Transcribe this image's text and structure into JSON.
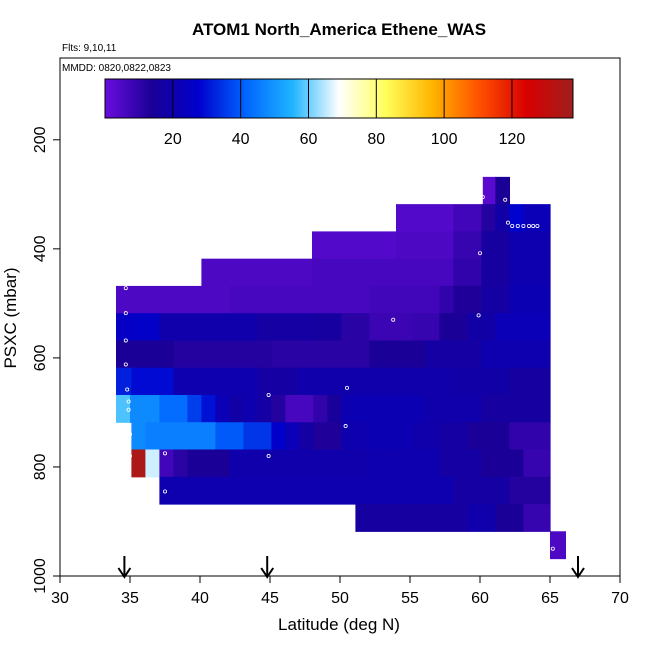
{
  "chart_data": {
    "type": "heatmap",
    "title": "ATOM1 North_America Ethene_WAS",
    "subtitle_flights": "Flts: 9,10,11",
    "subtitle_dates": "MMDD: 0820,0822,0823",
    "xlabel": "Latitude (deg N)",
    "ylabel": "PSXC (mbar)",
    "xlim": [
      30,
      70
    ],
    "ylim": [
      1000,
      50
    ],
    "x_ticks": [
      "30",
      "35",
      "40",
      "45",
      "50",
      "55",
      "60",
      "65",
      "70"
    ],
    "y_ticks": [
      "200",
      "400",
      "600",
      "800",
      "1000"
    ],
    "colorbar": {
      "range": [
        0,
        138
      ],
      "ticks": [
        "20",
        "40",
        "60",
        "80",
        "100",
        "120"
      ],
      "stops": [
        "#6a0dde",
        "#1a0096",
        "#0000cd",
        "#0064ff",
        "#1eb4ff",
        "#ffffff",
        "#ffff5a",
        "#ffb400",
        "#ff5000",
        "#d80000",
        "#a01e1e"
      ]
    },
    "arrows_latitude": [
      34.6,
      44.8,
      67
    ],
    "rows": [
      {
        "p_top": 268,
        "p_bottom": 318,
        "cells": [
          {
            "x0": 60.2,
            "x1": 61.1,
            "v": 3
          },
          {
            "x0": 61.1,
            "x1": 62.1,
            "v": 14
          }
        ]
      },
      {
        "p_top": 318,
        "p_bottom": 368,
        "cells": [
          {
            "x0": 54.0,
            "x1": 58.1,
            "v": 4
          },
          {
            "x0": 58.1,
            "x1": 60.1,
            "v": 7
          },
          {
            "x0": 60.1,
            "x1": 61.1,
            "v": 12
          },
          {
            "x0": 61.1,
            "x1": 62.1,
            "v": 18
          },
          {
            "x0": 62.1,
            "x1": 63.1,
            "v": 28
          },
          {
            "x0": 63.1,
            "x1": 65.0,
            "v": 22
          }
        ]
      },
      {
        "p_top": 368,
        "p_bottom": 418,
        "cells": [
          {
            "x0": 48.0,
            "x1": 54.0,
            "v": 4
          },
          {
            "x0": 54.0,
            "x1": 58.1,
            "v": 5
          },
          {
            "x0": 58.1,
            "x1": 60.1,
            "v": 9
          },
          {
            "x0": 60.1,
            "x1": 62.1,
            "v": 16
          },
          {
            "x0": 62.1,
            "x1": 65.0,
            "v": 20
          }
        ]
      },
      {
        "p_top": 418,
        "p_bottom": 468,
        "cells": [
          {
            "x0": 40.1,
            "x1": 48.0,
            "v": 5
          },
          {
            "x0": 48.0,
            "x1": 58.1,
            "v": 6
          },
          {
            "x0": 58.1,
            "x1": 60.1,
            "v": 10
          },
          {
            "x0": 60.1,
            "x1": 62.1,
            "v": 16
          },
          {
            "x0": 62.1,
            "x1": 65.0,
            "v": 20
          }
        ]
      },
      {
        "p_top": 468,
        "p_bottom": 518,
        "cells": [
          {
            "x0": 34.0,
            "x1": 42.1,
            "v": 5
          },
          {
            "x0": 42.1,
            "x1": 52.1,
            "v": 6
          },
          {
            "x0": 52.1,
            "x1": 57.1,
            "v": 7
          },
          {
            "x0": 57.1,
            "x1": 58.1,
            "v": 10
          },
          {
            "x0": 58.1,
            "x1": 60.1,
            "v": 13
          },
          {
            "x0": 60.1,
            "x1": 62.1,
            "v": 17
          },
          {
            "x0": 62.1,
            "x1": 65.0,
            "v": 21
          }
        ]
      },
      {
        "p_top": 518,
        "p_bottom": 568,
        "cells": [
          {
            "x0": 34.0,
            "x1": 35.1,
            "v": 25
          },
          {
            "x0": 35.1,
            "x1": 37.1,
            "v": 26
          },
          {
            "x0": 37.1,
            "x1": 44.1,
            "v": 19
          },
          {
            "x0": 44.1,
            "x1": 48.1,
            "v": 17
          },
          {
            "x0": 48.1,
            "x1": 50.1,
            "v": 16
          },
          {
            "x0": 50.1,
            "x1": 52.1,
            "v": 11
          },
          {
            "x0": 52.1,
            "x1": 55.1,
            "v": 8
          },
          {
            "x0": 55.1,
            "x1": 57.1,
            "v": 9
          },
          {
            "x0": 57.1,
            "x1": 59.1,
            "v": 14
          },
          {
            "x0": 59.1,
            "x1": 61.1,
            "v": 18
          },
          {
            "x0": 61.1,
            "x1": 65.0,
            "v": 22
          }
        ]
      },
      {
        "p_top": 568,
        "p_bottom": 618,
        "cells": [
          {
            "x0": 34.0,
            "x1": 38.1,
            "v": 14
          },
          {
            "x0": 38.1,
            "x1": 45.1,
            "v": 12
          },
          {
            "x0": 45.1,
            "x1": 52.1,
            "v": 11
          },
          {
            "x0": 52.1,
            "x1": 56.1,
            "v": 14
          },
          {
            "x0": 56.1,
            "x1": 60.1,
            "v": 17
          },
          {
            "x0": 60.1,
            "x1": 65.0,
            "v": 20
          }
        ]
      },
      {
        "p_top": 618,
        "p_bottom": 668,
        "cells": [
          {
            "x0": 34.0,
            "x1": 35.1,
            "v": 32
          },
          {
            "x0": 35.1,
            "x1": 38.1,
            "v": 29
          },
          {
            "x0": 38.1,
            "x1": 44.1,
            "v": 20
          },
          {
            "x0": 44.1,
            "x1": 47.1,
            "v": 17
          },
          {
            "x0": 47.1,
            "x1": 58.1,
            "v": 19
          },
          {
            "x0": 58.1,
            "x1": 62.1,
            "v": 18
          },
          {
            "x0": 62.1,
            "x1": 65.0,
            "v": 16
          }
        ]
      },
      {
        "p_top": 668,
        "p_bottom": 718,
        "cells": [
          {
            "x0": 34.0,
            "x1": 35.0,
            "v": 58
          },
          {
            "x0": 35.0,
            "x1": 37.1,
            "v": 48
          },
          {
            "x0": 37.1,
            "x1": 39.1,
            "v": 43
          },
          {
            "x0": 39.1,
            "x1": 40.1,
            "v": 36
          },
          {
            "x0": 40.1,
            "x1": 41.1,
            "v": 30
          },
          {
            "x0": 41.1,
            "x1": 42.1,
            "v": 22
          },
          {
            "x0": 42.1,
            "x1": 43.1,
            "v": 18
          },
          {
            "x0": 43.1,
            "x1": 44.1,
            "v": 20
          },
          {
            "x0": 44.1,
            "x1": 45.1,
            "v": 17
          },
          {
            "x0": 45.1,
            "x1": 46.1,
            "v": 12
          },
          {
            "x0": 46.1,
            "x1": 48.1,
            "v": 6
          },
          {
            "x0": 48.1,
            "x1": 49.1,
            "v": 10
          },
          {
            "x0": 49.1,
            "x1": 50.1,
            "v": 15
          },
          {
            "x0": 50.1,
            "x1": 56.1,
            "v": 21
          },
          {
            "x0": 56.1,
            "x1": 60.1,
            "v": 19
          },
          {
            "x0": 60.1,
            "x1": 65.0,
            "v": 16
          }
        ]
      },
      {
        "p_top": 718,
        "p_bottom": 768,
        "cells": [
          {
            "x0": 35.1,
            "x1": 36.1,
            "v": 48
          },
          {
            "x0": 36.1,
            "x1": 41.1,
            "v": 46
          },
          {
            "x0": 41.1,
            "x1": 43.1,
            "v": 40
          },
          {
            "x0": 43.1,
            "x1": 45.1,
            "v": 35
          },
          {
            "x0": 45.1,
            "x1": 46.1,
            "v": 27
          },
          {
            "x0": 46.1,
            "x1": 47.1,
            "v": 22
          },
          {
            "x0": 47.1,
            "x1": 48.1,
            "v": 17
          },
          {
            "x0": 48.1,
            "x1": 50.1,
            "v": 13
          },
          {
            "x0": 50.1,
            "x1": 52.1,
            "v": 20
          },
          {
            "x0": 52.1,
            "x1": 55.1,
            "v": 21
          },
          {
            "x0": 55.1,
            "x1": 57.1,
            "v": 19
          },
          {
            "x0": 57.1,
            "x1": 59.1,
            "v": 17
          },
          {
            "x0": 59.1,
            "x1": 62.1,
            "v": 14
          },
          {
            "x0": 62.1,
            "x1": 65.0,
            "v": 10
          }
        ]
      },
      {
        "p_top": 768,
        "p_bottom": 818,
        "cells": [
          {
            "x0": 35.1,
            "x1": 36.1,
            "v": 135
          },
          {
            "x0": 36.1,
            "x1": 37.1,
            "v": 66
          },
          {
            "x0": 37.1,
            "x1": 38.1,
            "v": 7
          },
          {
            "x0": 38.1,
            "x1": 39.1,
            "v": 11
          },
          {
            "x0": 39.1,
            "x1": 42.1,
            "v": 14
          },
          {
            "x0": 42.1,
            "x1": 52.1,
            "v": 19
          },
          {
            "x0": 52.1,
            "x1": 57.1,
            "v": 20
          },
          {
            "x0": 57.1,
            "x1": 60.1,
            "v": 17
          },
          {
            "x0": 60.1,
            "x1": 63.1,
            "v": 14
          },
          {
            "x0": 63.1,
            "x1": 65.0,
            "v": 9
          }
        ]
      },
      {
        "p_top": 818,
        "p_bottom": 868,
        "cells": [
          {
            "x0": 37.1,
            "x1": 58.1,
            "v": 20
          },
          {
            "x0": 58.1,
            "x1": 62.1,
            "v": 17
          },
          {
            "x0": 62.1,
            "x1": 65.0,
            "v": 12
          }
        ]
      },
      {
        "p_top": 868,
        "p_bottom": 918,
        "cells": [
          {
            "x0": 51.1,
            "x1": 59.1,
            "v": 16
          },
          {
            "x0": 59.1,
            "x1": 61.1,
            "v": 19
          },
          {
            "x0": 61.1,
            "x1": 63.1,
            "v": 14
          },
          {
            "x0": 63.1,
            "x1": 65.0,
            "v": 9
          }
        ]
      },
      {
        "p_top": 918,
        "p_bottom": 968,
        "cells": [
          {
            "x0": 65.0,
            "x1": 66.1,
            "v": 5
          }
        ]
      }
    ],
    "points": [
      {
        "lat": 34.7,
        "p": 472
      },
      {
        "lat": 34.7,
        "p": 518
      },
      {
        "lat": 34.7,
        "p": 568
      },
      {
        "lat": 34.7,
        "p": 612
      },
      {
        "lat": 34.8,
        "p": 658
      },
      {
        "lat": 34.9,
        "p": 680
      },
      {
        "lat": 34.9,
        "p": 695
      },
      {
        "lat": 35.0,
        "p": 740
      },
      {
        "lat": 35.0,
        "p": 780
      },
      {
        "lat": 37.5,
        "p": 775
      },
      {
        "lat": 37.5,
        "p": 845
      },
      {
        "lat": 44.9,
        "p": 668
      },
      {
        "lat": 44.9,
        "p": 780
      },
      {
        "lat": 50.5,
        "p": 655
      },
      {
        "lat": 50.4,
        "p": 725
      },
      {
        "lat": 53.8,
        "p": 530
      },
      {
        "lat": 59.9,
        "p": 522
      },
      {
        "lat": 60.0,
        "p": 408
      },
      {
        "lat": 60.2,
        "p": 305
      },
      {
        "lat": 61.8,
        "p": 310
      },
      {
        "lat": 62.0,
        "p": 352
      },
      {
        "lat": 62.3,
        "p": 358
      },
      {
        "lat": 62.7,
        "p": 358
      },
      {
        "lat": 63.1,
        "p": 358
      },
      {
        "lat": 63.5,
        "p": 358
      },
      {
        "lat": 63.8,
        "p": 358
      },
      {
        "lat": 64.1,
        "p": 358
      },
      {
        "lat": 65.2,
        "p": 950
      }
    ],
    "grid": false,
    "legend": "colorbar-top"
  }
}
